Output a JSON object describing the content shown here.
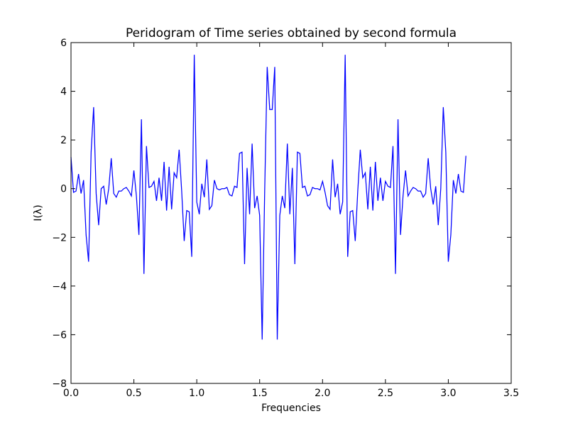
{
  "chart_data": {
    "type": "line",
    "title": "Peridogram of Time series obtained by second formula",
    "xlabel": "Frequencies",
    "ylabel": "I(λ)",
    "xlim": [
      0.0,
      3.5
    ],
    "ylim": [
      -8,
      6
    ],
    "xticks": [
      0.0,
      0.5,
      1.0,
      1.5,
      2.0,
      2.5,
      3.0,
      3.5
    ],
    "xtick_labels": [
      "0.0",
      "0.5",
      "1.0",
      "1.5",
      "2.0",
      "2.5",
      "3.0",
      "3.5"
    ],
    "yticks": [
      -8,
      -6,
      -4,
      -2,
      0,
      2,
      4,
      6
    ],
    "ytick_labels": [
      "−8",
      "−6",
      "−4",
      "−2",
      "0",
      "2",
      "4",
      "6"
    ],
    "grid": false,
    "series": [
      {
        "color": "#0000ff",
        "x": [
          0.0,
          0.02,
          0.04,
          0.06,
          0.08,
          0.1,
          0.12,
          0.14,
          0.16,
          0.18,
          0.2,
          0.22,
          0.24,
          0.26,
          0.28,
          0.3,
          0.32,
          0.34,
          0.36,
          0.38,
          0.4,
          0.42,
          0.44,
          0.46,
          0.48,
          0.5,
          0.52,
          0.54,
          0.56,
          0.58,
          0.6,
          0.62,
          0.64,
          0.66,
          0.68,
          0.7,
          0.72,
          0.74,
          0.76,
          0.78,
          0.8,
          0.82,
          0.84,
          0.86,
          0.88,
          0.9,
          0.92,
          0.94,
          0.96,
          0.98,
          1.0,
          1.02,
          1.04,
          1.06,
          1.08,
          1.1,
          1.12,
          1.14,
          1.16,
          1.18,
          1.2,
          1.22,
          1.24,
          1.26,
          1.28,
          1.3,
          1.32,
          1.34,
          1.36,
          1.38,
          1.4,
          1.42,
          1.44,
          1.46,
          1.48,
          1.5,
          1.52,
          1.54,
          1.56,
          1.58,
          1.6,
          1.62,
          1.64,
          1.66,
          1.68,
          1.7,
          1.72,
          1.74,
          1.76,
          1.78,
          1.8,
          1.82,
          1.84,
          1.86,
          1.88,
          1.9,
          1.92,
          1.94,
          1.96,
          1.98,
          2.0,
          2.02,
          2.04,
          2.06,
          2.08,
          2.1,
          2.12,
          2.14,
          2.16,
          2.18,
          2.2,
          2.22,
          2.24,
          2.26,
          2.28,
          2.3,
          2.32,
          2.34,
          2.36,
          2.38,
          2.4,
          2.42,
          2.44,
          2.46,
          2.48,
          2.5,
          2.52,
          2.54,
          2.56,
          2.58,
          2.6,
          2.62,
          2.64,
          2.66,
          2.68,
          2.7,
          2.72,
          2.74,
          2.76,
          2.78,
          2.8,
          2.82,
          2.84,
          2.86,
          2.88,
          2.9,
          2.92,
          2.94,
          2.96,
          2.98,
          3.0,
          3.02,
          3.04,
          3.06,
          3.08,
          3.1,
          3.12,
          3.14
        ],
        "values": [
          1.3,
          -0.15,
          -0.1,
          0.6,
          -0.2,
          0.35,
          -1.9,
          -3.0,
          1.5,
          3.35,
          -0.2,
          -1.5,
          0.0,
          0.1,
          -0.65,
          0.0,
          1.25,
          -0.2,
          -0.35,
          -0.1,
          -0.1,
          0.0,
          0.05,
          -0.1,
          -0.3,
          0.75,
          -0.3,
          -1.9,
          2.85,
          -3.5,
          1.75,
          0.05,
          0.1,
          0.3,
          -0.5,
          0.45,
          -0.5,
          1.1,
          -0.9,
          0.9,
          -0.85,
          0.65,
          0.45,
          1.6,
          -0.1,
          -2.15,
          -0.9,
          -0.95,
          -2.8,
          5.5,
          -0.55,
          -1.05,
          0.2,
          -0.35,
          1.2,
          -0.85,
          -0.7,
          0.35,
          0.0,
          -0.05,
          0.0,
          0.0,
          0.05,
          -0.25,
          -0.3,
          0.1,
          0.05,
          1.45,
          1.5,
          -3.1,
          0.85,
          -1.05,
          1.85,
          -0.8,
          -0.3,
          -1.1,
          -6.2,
          -0.1,
          5.0,
          3.25,
          3.25,
          5.0,
          -6.2,
          -1.1,
          -0.3,
          -0.8,
          1.85,
          -1.05,
          0.85,
          -3.1,
          1.5,
          1.45,
          0.05,
          0.1,
          -0.3,
          -0.25,
          0.05,
          0.0,
          0.0,
          -0.05,
          0.3,
          -0.15,
          -0.7,
          -0.85,
          1.2,
          -0.35,
          0.2,
          -1.05,
          -0.55,
          5.5,
          -2.8,
          -0.95,
          -0.9,
          -2.15,
          -0.1,
          1.6,
          0.45,
          0.65,
          -0.85,
          0.9,
          -0.9,
          1.1,
          -0.5,
          0.45,
          -0.5,
          0.3,
          0.1,
          0.05,
          1.75,
          -3.5,
          2.85,
          -1.9,
          -0.3,
          0.75,
          -0.3,
          -0.1,
          0.05,
          0.0,
          -0.1,
          -0.1,
          -0.35,
          -0.2,
          1.25,
          0.0,
          -0.65,
          0.1,
          -1.5,
          0.0,
          3.35,
          1.5,
          -3.0,
          -1.9,
          0.35,
          -0.2,
          0.6,
          -0.1,
          -0.15,
          1.35
        ]
      }
    ]
  }
}
